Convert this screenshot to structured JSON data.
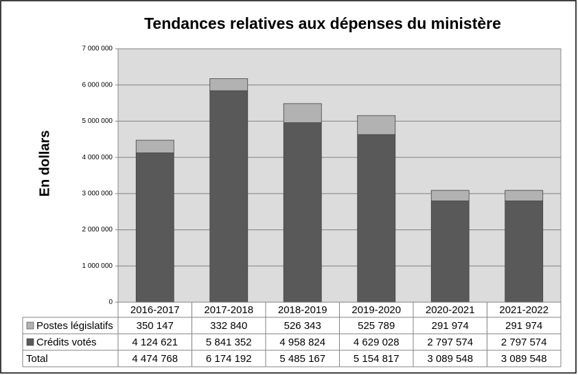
{
  "chart_data": {
    "type": "bar",
    "stacked": true,
    "title": "Tendances relatives aux dépenses du ministère",
    "y_label": "En dollars",
    "categories": [
      "2016-2017",
      "2017-2018",
      "2018-2019",
      "2019-2020",
      "2020-2021",
      "2021-2022"
    ],
    "series": [
      {
        "name": "Crédits votés",
        "color": "#595959",
        "values": [
          4124621,
          5841352,
          4958824,
          4629028,
          2797574,
          2797574
        ],
        "value_labels": [
          "4 124 621",
          "5 841 352",
          "4 958 824",
          "4 629 028",
          "2 797 574",
          "2 797 574"
        ]
      },
      {
        "name": "Postes législatifs",
        "color": "#b2b2b2",
        "values": [
          350147,
          332840,
          526343,
          525789,
          291974,
          291974
        ],
        "value_labels": [
          "350 147",
          "332 840",
          "526 343",
          "525 789",
          "291 974",
          "291 974"
        ]
      }
    ],
    "total": {
      "name": "Total",
      "labels": [
        "4 474 768",
        "6 174 192",
        "5 485 167",
        "5 154 817",
        "3 089 548",
        "3 089 548"
      ]
    },
    "ylim": [
      0,
      7000000
    ],
    "yticks": [
      0,
      {
        "value": 1000000,
        "label": "1 000 000"
      },
      {
        "value": 2000000,
        "label": "2 000 000"
      },
      {
        "value": 3000000,
        "label": "3 000 000"
      },
      {
        "value": 4000000,
        "label": "4 000 000"
      },
      {
        "value": 5000000,
        "label": "5 000 000"
      },
      {
        "value": 6000000,
        "label": "6 000 000"
      },
      {
        "value": 7000000,
        "label": "7 000 000"
      }
    ],
    "grid": true
  }
}
